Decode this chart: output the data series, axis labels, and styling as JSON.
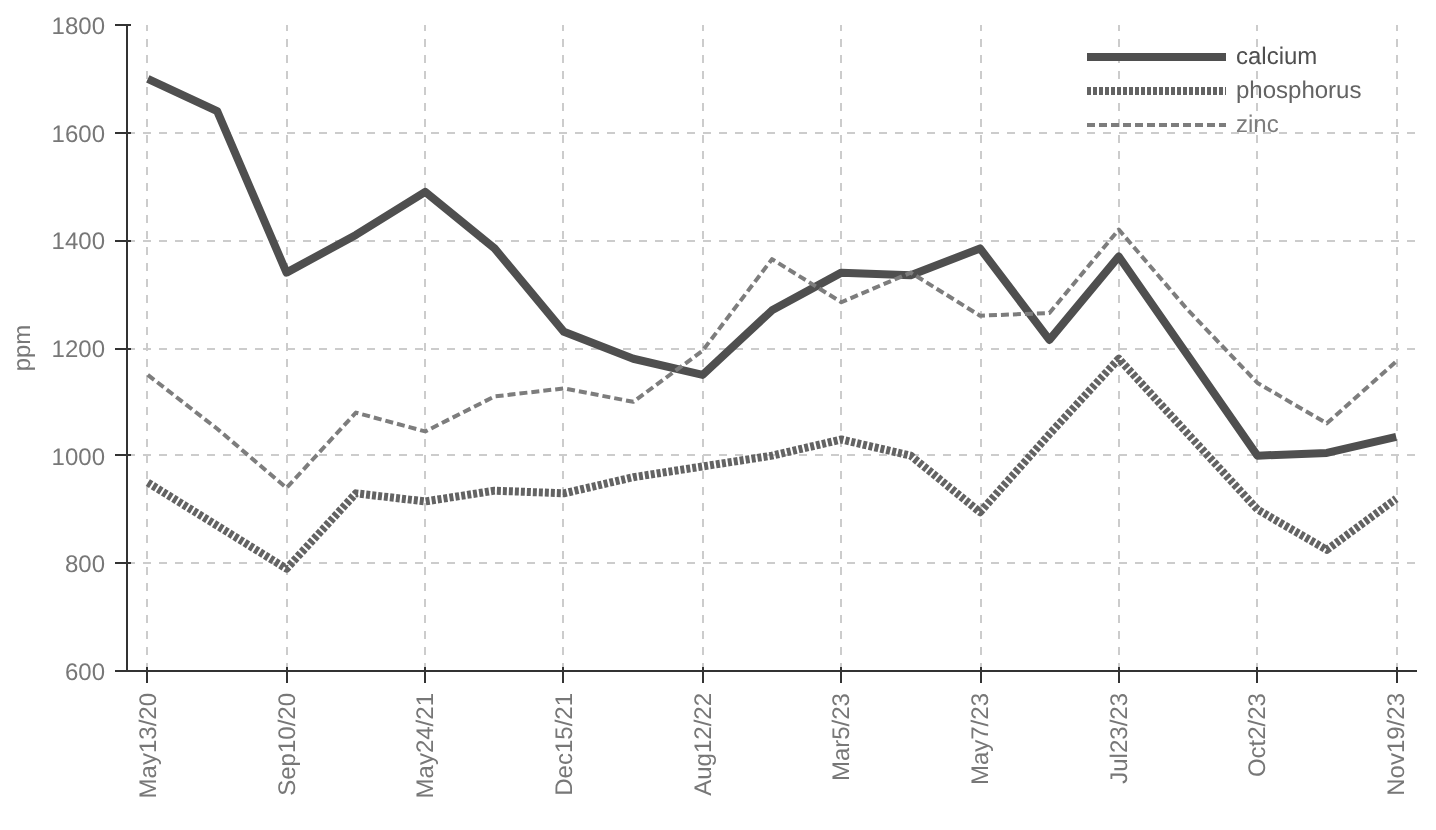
{
  "chart_data": {
    "type": "line",
    "ylabel": "ppm",
    "categories": [
      "May13/20",
      null,
      "Sep10/20",
      null,
      "May24/21",
      null,
      "Dec15/21",
      null,
      "Aug12/22",
      null,
      "Mar5/23",
      null,
      "May7/23",
      null,
      "Jul23/23",
      null,
      "Oct2/23",
      null,
      "Nov19/23"
    ],
    "series": [
      {
        "name": "calcium",
        "color": "#4f4f4f",
        "line_style": "solid",
        "values": [
          1700,
          1640,
          1340,
          1410,
          1490,
          1385,
          1230,
          1180,
          1150,
          1270,
          1340,
          1335,
          1385,
          1215,
          1370,
          1185,
          1000,
          1005,
          1035
        ]
      },
      {
        "name": "phosphorus",
        "color": "#636363",
        "line_style": "dotted",
        "values": [
          950,
          870,
          790,
          930,
          915,
          935,
          930,
          960,
          980,
          1000,
          1030,
          1000,
          895,
          1040,
          1180,
          1040,
          900,
          825,
          920
        ]
      },
      {
        "name": "zinc",
        "color": "#7d7d7d",
        "line_style": "dashed",
        "values": [
          1150,
          1050,
          940,
          1080,
          1045,
          1110,
          1125,
          1100,
          1195,
          1365,
          1285,
          1340,
          1260,
          1265,
          1420,
          1270,
          1135,
          1060,
          1175
        ]
      }
    ],
    "ylim": [
      600,
      1800
    ],
    "yticks": [
      600,
      800,
      1000,
      1200,
      1400,
      1600,
      1800
    ],
    "grid": true,
    "legend": "top right",
    "marker": "none"
  }
}
